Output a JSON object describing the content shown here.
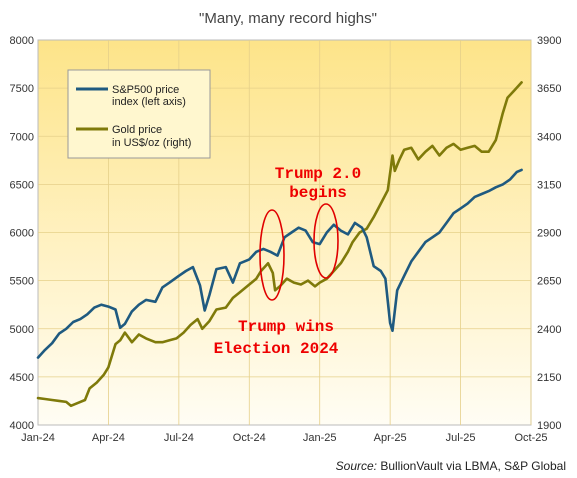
{
  "chart_data": {
    "type": "line",
    "title": "\"Many, many record highs\"",
    "source_prefix": "Source:",
    "source_rest": " BullionVault via LBMA, S&P Global",
    "x_ticks": [
      "Jan-24",
      "Apr-24",
      "Jul-24",
      "Oct-24",
      "Jan-25",
      "Apr-25",
      "Jul-25",
      "Oct-25"
    ],
    "x_range_months": [
      0,
      21
    ],
    "y_left": {
      "range": [
        4000,
        8000
      ],
      "ticks": [
        "4000",
        "4500",
        "5000",
        "5500",
        "6000",
        "6500",
        "7000",
        "7500",
        "8000"
      ]
    },
    "y_right": {
      "range": [
        1900,
        3900
      ],
      "ticks": [
        "1900",
        "2150",
        "2400",
        "2650",
        "2900",
        "3150",
        "3400",
        "3650",
        "3900"
      ]
    },
    "legend": {
      "position": "top-left",
      "entries": [
        "S&P500 price index (left axis)",
        "Gold price in US$/oz (right)"
      ]
    },
    "series": [
      {
        "name": "S&P500 price index (left axis)",
        "axis": "left",
        "color": "#1f5a80",
        "points": [
          [
            0,
            4700
          ],
          [
            0.3,
            4780
          ],
          [
            0.6,
            4850
          ],
          [
            0.9,
            4950
          ],
          [
            1.2,
            5000
          ],
          [
            1.5,
            5070
          ],
          [
            1.8,
            5100
          ],
          [
            2.1,
            5150
          ],
          [
            2.4,
            5220
          ],
          [
            2.7,
            5250
          ],
          [
            3.0,
            5230
          ],
          [
            3.3,
            5200
          ],
          [
            3.5,
            5010
          ],
          [
            3.7,
            5050
          ],
          [
            4.0,
            5180
          ],
          [
            4.3,
            5250
          ],
          [
            4.6,
            5300
          ],
          [
            5.0,
            5280
          ],
          [
            5.3,
            5430
          ],
          [
            5.6,
            5480
          ],
          [
            6.0,
            5550
          ],
          [
            6.3,
            5600
          ],
          [
            6.6,
            5640
          ],
          [
            6.9,
            5450
          ],
          [
            7.1,
            5190
          ],
          [
            7.3,
            5350
          ],
          [
            7.6,
            5620
          ],
          [
            8.0,
            5640
          ],
          [
            8.3,
            5480
          ],
          [
            8.6,
            5680
          ],
          [
            9.0,
            5720
          ],
          [
            9.3,
            5800
          ],
          [
            9.6,
            5830
          ],
          [
            9.9,
            5800
          ],
          [
            10.2,
            5760
          ],
          [
            10.5,
            5950
          ],
          [
            10.8,
            6000
          ],
          [
            11.1,
            6050
          ],
          [
            11.4,
            6020
          ],
          [
            11.7,
            5900
          ],
          [
            12.0,
            5880
          ],
          [
            12.3,
            6000
          ],
          [
            12.6,
            6080
          ],
          [
            12.9,
            6020
          ],
          [
            13.2,
            5980
          ],
          [
            13.5,
            6100
          ],
          [
            13.8,
            6050
          ],
          [
            14.0,
            5950
          ],
          [
            14.3,
            5650
          ],
          [
            14.6,
            5600
          ],
          [
            14.8,
            5520
          ],
          [
            15.0,
            5060
          ],
          [
            15.1,
            4980
          ],
          [
            15.3,
            5400
          ],
          [
            15.6,
            5550
          ],
          [
            15.9,
            5700
          ],
          [
            16.2,
            5800
          ],
          [
            16.5,
            5900
          ],
          [
            16.8,
            5950
          ],
          [
            17.1,
            6000
          ],
          [
            17.4,
            6100
          ],
          [
            17.7,
            6200
          ],
          [
            18.0,
            6250
          ],
          [
            18.3,
            6300
          ],
          [
            18.6,
            6370
          ],
          [
            18.9,
            6400
          ],
          [
            19.2,
            6430
          ],
          [
            19.5,
            6470
          ],
          [
            19.8,
            6500
          ],
          [
            20.1,
            6550
          ],
          [
            20.4,
            6630
          ],
          [
            20.6,
            6650
          ]
        ]
      },
      {
        "name": "Gold price in US$/oz (right)",
        "axis": "right",
        "color": "#7f7a0a",
        "points": [
          [
            0,
            2040
          ],
          [
            0.3,
            2035
          ],
          [
            0.6,
            2030
          ],
          [
            0.9,
            2025
          ],
          [
            1.2,
            2020
          ],
          [
            1.4,
            2000
          ],
          [
            1.7,
            2015
          ],
          [
            2.0,
            2030
          ],
          [
            2.2,
            2090
          ],
          [
            2.5,
            2120
          ],
          [
            2.8,
            2160
          ],
          [
            3.0,
            2200
          ],
          [
            3.3,
            2320
          ],
          [
            3.5,
            2340
          ],
          [
            3.7,
            2380
          ],
          [
            4.0,
            2330
          ],
          [
            4.3,
            2370
          ],
          [
            4.6,
            2350
          ],
          [
            5.0,
            2330
          ],
          [
            5.3,
            2330
          ],
          [
            5.6,
            2340
          ],
          [
            5.9,
            2350
          ],
          [
            6.2,
            2380
          ],
          [
            6.5,
            2420
          ],
          [
            6.8,
            2450
          ],
          [
            7.0,
            2400
          ],
          [
            7.3,
            2440
          ],
          [
            7.6,
            2500
          ],
          [
            8.0,
            2510
          ],
          [
            8.3,
            2560
          ],
          [
            8.6,
            2590
          ],
          [
            9.0,
            2630
          ],
          [
            9.3,
            2660
          ],
          [
            9.5,
            2700
          ],
          [
            9.8,
            2740
          ],
          [
            10.0,
            2690
          ],
          [
            10.1,
            2600
          ],
          [
            10.3,
            2620
          ],
          [
            10.6,
            2660
          ],
          [
            10.9,
            2640
          ],
          [
            11.2,
            2630
          ],
          [
            11.5,
            2650
          ],
          [
            11.8,
            2620
          ],
          [
            12.0,
            2640
          ],
          [
            12.3,
            2660
          ],
          [
            12.6,
            2700
          ],
          [
            12.9,
            2740
          ],
          [
            13.2,
            2800
          ],
          [
            13.4,
            2850
          ],
          [
            13.7,
            2900
          ],
          [
            14.0,
            2920
          ],
          [
            14.3,
            2980
          ],
          [
            14.6,
            3050
          ],
          [
            14.9,
            3120
          ],
          [
            15.1,
            3300
          ],
          [
            15.2,
            3220
          ],
          [
            15.4,
            3280
          ],
          [
            15.6,
            3330
          ],
          [
            15.9,
            3340
          ],
          [
            16.2,
            3280
          ],
          [
            16.5,
            3320
          ],
          [
            16.8,
            3350
          ],
          [
            17.1,
            3300
          ],
          [
            17.4,
            3340
          ],
          [
            17.7,
            3360
          ],
          [
            18.0,
            3330
          ],
          [
            18.3,
            3340
          ],
          [
            18.6,
            3350
          ],
          [
            18.9,
            3320
          ],
          [
            19.2,
            3320
          ],
          [
            19.5,
            3380
          ],
          [
            19.8,
            3520
          ],
          [
            20.0,
            3600
          ],
          [
            20.3,
            3640
          ],
          [
            20.6,
            3680
          ]
        ]
      }
    ],
    "annotations": [
      {
        "lines": [
          "Trump 2.0",
          "begins"
        ]
      },
      {
        "lines": [
          "Trump wins",
          "Election 2024"
        ]
      }
    ]
  }
}
